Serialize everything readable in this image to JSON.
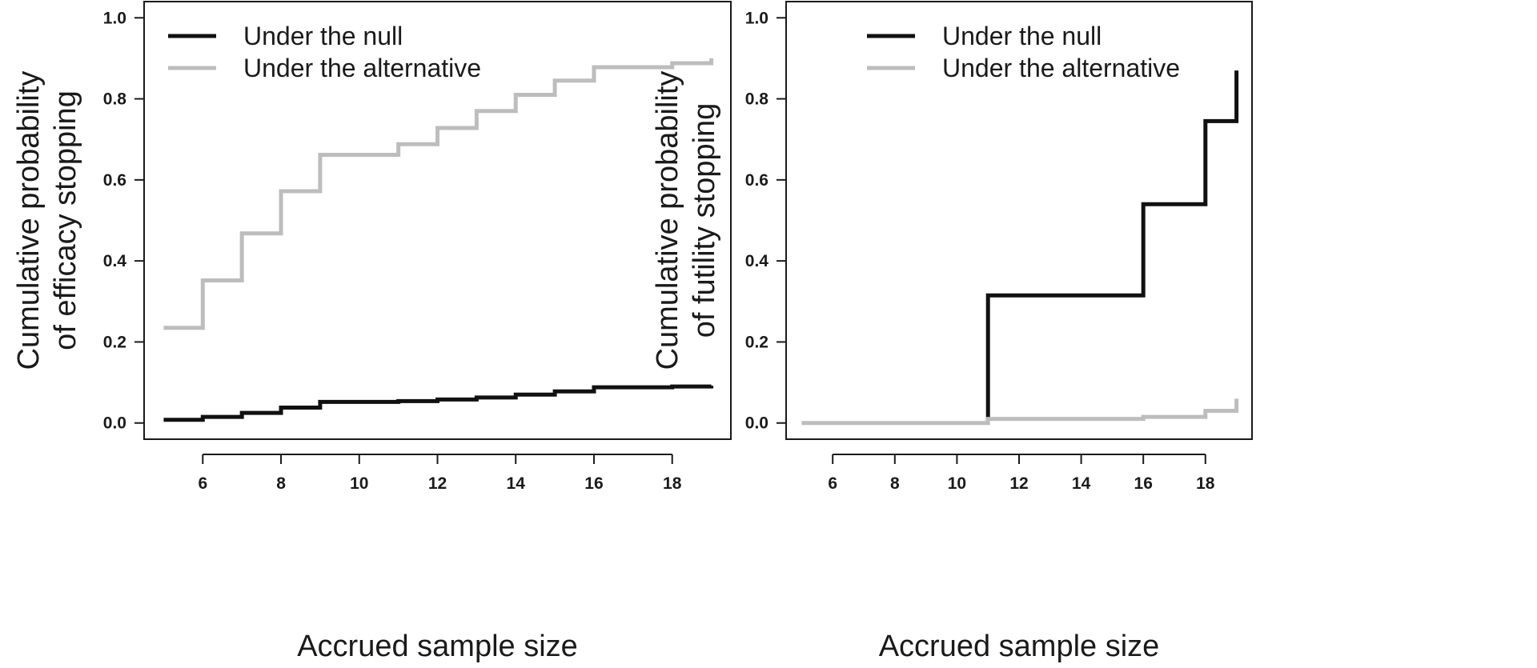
{
  "chart_data": [
    {
      "type": "line",
      "step": true,
      "title": "",
      "xlabel": "Accrued sample size",
      "ylabel": [
        "Cumulative probability",
        "of efficacy stopping"
      ],
      "xlim": [
        4.5,
        19.5
      ],
      "ylim": [
        -0.04,
        1.04
      ],
      "xticks": [
        6,
        8,
        10,
        12,
        14,
        16,
        18
      ],
      "xtick_labels": [
        "6",
        "8",
        "10",
        "12",
        "14",
        "16",
        "18"
      ],
      "yticks": [
        0,
        0.2,
        0.4,
        0.6,
        0.8,
        1.0
      ],
      "ytick_labels": [
        "0.0",
        "0.2",
        "0.4",
        "0.6",
        "0.8",
        "1.0"
      ],
      "legend_position": "top-left",
      "grid": false,
      "series": [
        {
          "name": "Under the null",
          "color": "#111111",
          "x": [
            5,
            6,
            7,
            8,
            9,
            10,
            11,
            12,
            13,
            14,
            15,
            16,
            17,
            18,
            19
          ],
          "y": [
            0.008,
            0.015,
            0.025,
            0.038,
            0.052,
            0.052,
            0.054,
            0.058,
            0.063,
            0.07,
            0.078,
            0.088,
            0.088,
            0.09,
            0.092
          ]
        },
        {
          "name": "Under the alternative",
          "color": "#bdbdbd",
          "x": [
            5,
            6,
            7,
            8,
            9,
            10,
            11,
            12,
            13,
            14,
            15,
            16,
            17,
            18,
            19
          ],
          "y": [
            0.235,
            0.352,
            0.468,
            0.572,
            0.662,
            0.662,
            0.688,
            0.728,
            0.77,
            0.81,
            0.845,
            0.878,
            0.878,
            0.888,
            0.9
          ]
        }
      ]
    },
    {
      "type": "line",
      "step": true,
      "title": "",
      "xlabel": "Accrued sample size",
      "ylabel": [
        "Cumulative probability",
        "of futility stopping"
      ],
      "xlim": [
        4.5,
        19.5
      ],
      "ylim": [
        -0.04,
        1.04
      ],
      "xticks": [
        6,
        8,
        10,
        12,
        14,
        16,
        18
      ],
      "xtick_labels": [
        "6",
        "8",
        "10",
        "12",
        "14",
        "16",
        "18"
      ],
      "yticks": [
        0,
        0.2,
        0.4,
        0.6,
        0.8,
        1.0
      ],
      "ytick_labels": [
        "0.0",
        "0.2",
        "0.4",
        "0.6",
        "0.8",
        "1.0"
      ],
      "legend_position": "top-center",
      "grid": false,
      "series": [
        {
          "name": "Under the null",
          "color": "#111111",
          "x": [
            11,
            16,
            18,
            19
          ],
          "y": [
            0.315,
            0.54,
            0.745,
            0.87
          ],
          "start_at": 0.01
        },
        {
          "name": "Under the alternative",
          "color": "#bdbdbd",
          "x": [
            5,
            11,
            16,
            18,
            19
          ],
          "y": [
            0.0,
            0.01,
            0.015,
            0.03,
            0.06
          ]
        }
      ]
    }
  ]
}
